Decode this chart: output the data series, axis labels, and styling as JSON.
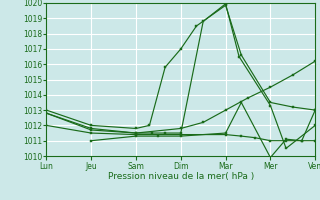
{
  "background_color": "#cce8e8",
  "grid_color": "#ffffff",
  "line_color": "#1a6b1a",
  "xlabel": "Pression niveau de la mer( hPa )",
  "ylim": [
    1010,
    1020
  ],
  "yticks": [
    1010,
    1011,
    1012,
    1013,
    1014,
    1015,
    1016,
    1017,
    1018,
    1019,
    1020
  ],
  "xlim": [
    0,
    6
  ],
  "x_labels": [
    "Lun",
    "Jeu",
    "Sam",
    "Dim",
    "Mar",
    "Mer",
    "Ven"
  ],
  "x_positions": [
    0,
    1,
    2,
    3,
    4,
    5,
    6
  ],
  "series": [
    {
      "x": [
        0.0,
        1.0,
        2.0,
        2.3,
        2.65,
        3.0,
        3.35,
        4.0,
        4.35,
        5.0,
        5.5,
        6.0
      ],
      "y": [
        1013.0,
        1012.0,
        1011.8,
        1012.0,
        1015.8,
        1017.0,
        1018.5,
        1019.85,
        1016.6,
        1013.5,
        1013.2,
        1013.0
      ]
    },
    {
      "x": [
        0.0,
        1.0,
        2.0,
        2.35,
        2.65,
        3.0,
        3.5,
        4.0,
        4.3,
        5.0,
        5.35,
        6.0
      ],
      "y": [
        1012.8,
        1011.7,
        1011.5,
        1011.5,
        1011.5,
        1011.5,
        1018.8,
        1019.95,
        1016.5,
        1013.3,
        1010.5,
        1012.0
      ]
    },
    {
      "x": [
        0.0,
        1.0,
        2.0,
        3.0,
        4.0,
        4.35,
        4.65,
        5.0,
        5.35,
        5.7,
        6.0
      ],
      "y": [
        1012.0,
        1011.5,
        1011.4,
        1011.4,
        1011.4,
        1011.3,
        1011.2,
        1011.0,
        1011.0,
        1011.0,
        1011.0
      ]
    },
    {
      "x": [
        0.0,
        1.0,
        2.0,
        3.0,
        3.5,
        4.0,
        4.5,
        5.0,
        5.5,
        6.0
      ],
      "y": [
        1012.8,
        1011.8,
        1011.5,
        1011.8,
        1012.2,
        1013.0,
        1013.8,
        1014.5,
        1015.3,
        1016.2
      ]
    },
    {
      "x": [
        1.0,
        2.0,
        2.5,
        3.0,
        4.0,
        4.35,
        5.0,
        5.35,
        5.7,
        6.0
      ],
      "y": [
        1011.0,
        1011.3,
        1011.3,
        1011.3,
        1011.5,
        1013.5,
        1009.9,
        1011.1,
        1011.0,
        1013.0
      ]
    }
  ]
}
